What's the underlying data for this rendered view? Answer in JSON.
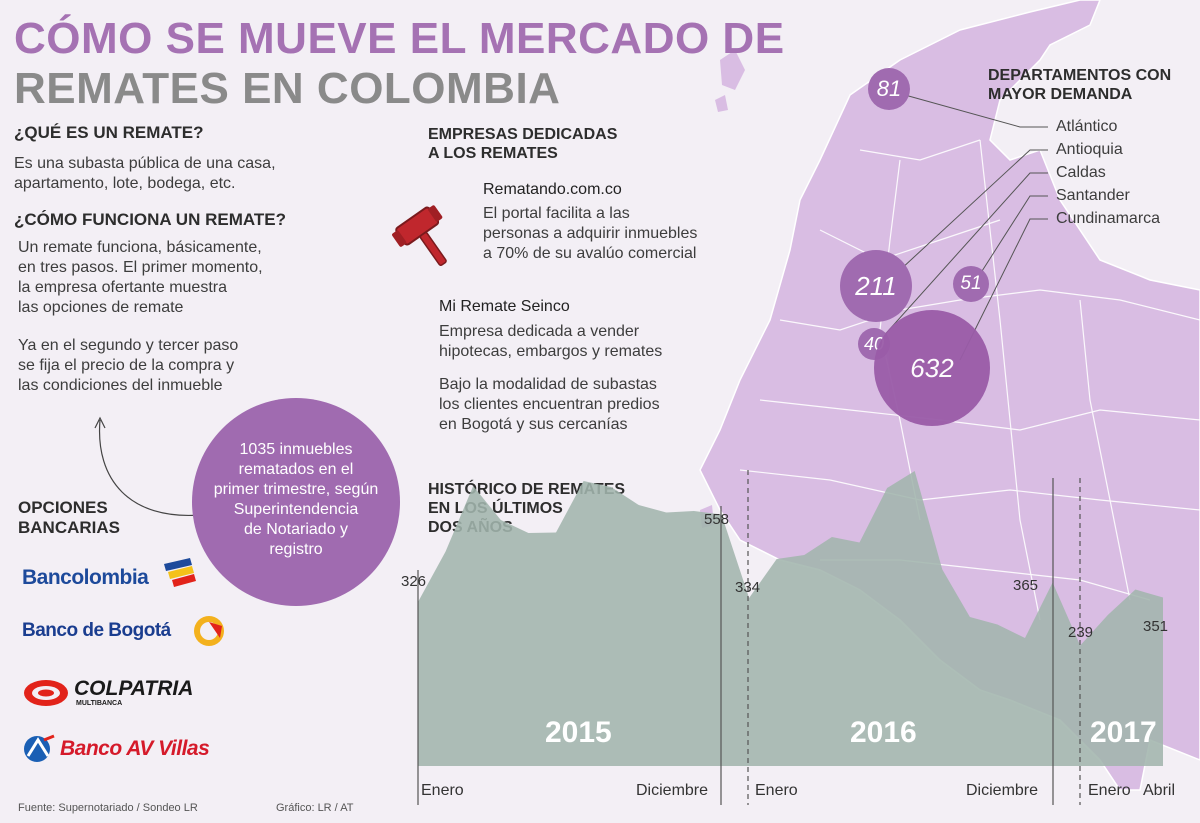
{
  "title": {
    "line1": "CÓMO SE MUEVE EL MERCADO DE",
    "line2": "REMATES EN COLOMBIA"
  },
  "que_es": {
    "heading": "¿QUÉ ES UN REMATE?",
    "lines": [
      "Es una subasta pública de una casa,",
      "apartamento, lote, bodega, etc."
    ]
  },
  "como_funciona": {
    "heading": "¿CÓMO FUNCIONA UN REMATE?",
    "para1": [
      "Un remate funciona, básicamente,",
      "en tres pasos. El primer momento,",
      "la empresa ofertante muestra",
      "las opciones de remate"
    ],
    "para2": [
      "Ya en el segundo y tercer paso",
      "se fija el precio de la compra y",
      "las condiciones del inmueble"
    ]
  },
  "callout": {
    "lines": [
      "1035 inmuebles",
      "rematados en el",
      "primer trimestre, según",
      "Superintendencia",
      "de Notariado y",
      "registro"
    ],
    "color": "#a06bb0"
  },
  "bancos": {
    "heading": [
      "OPCIONES",
      "BANCARIAS"
    ],
    "logos": [
      "Bancolombia",
      "Banco de Bogotá",
      "COLPATRIA",
      "MULTIBANCA",
      "Banco AV Villas"
    ]
  },
  "empresas": {
    "heading": [
      "EMPRESAS DEDICADAS",
      "A LOS REMATES"
    ],
    "e1": {
      "name": "Rematando.com.co",
      "lines": [
        "El portal facilita a las",
        "personas a adquirir inmuebles",
        "a 70% de su avalúo comercial"
      ]
    },
    "e2": {
      "name": "Mi Remate Seinco",
      "lines": [
        "Empresa dedicada a vender",
        "hipotecas, embargos y remates"
      ],
      "lines2": [
        "Bajo la modalidad de subastas",
        "los clientes encuentran predios",
        "en Bogotá y sus cercanías"
      ]
    }
  },
  "departamentos": {
    "heading": [
      "DEPARTAMENTOS CON",
      "MAYOR DEMANDA"
    ],
    "names": [
      "Atlántico",
      "Antioquia",
      "Caldas",
      "Santander",
      "Cundinamarca"
    ],
    "values": [
      "81",
      "211",
      "40",
      "51",
      "632"
    ]
  },
  "chart_heading": [
    "HISTÓRICO DE REMATES",
    "EN LOS ÚLTIMOS",
    "DOS AÑOS"
  ],
  "chart_data": {
    "type": "area",
    "title": "HISTÓRICO DE REMATES EN LOS ÚLTIMOS DOS AÑOS",
    "period_labels": [
      "Enero",
      "Diciembre",
      "Enero",
      "Diciembre",
      "Enero",
      "Abril"
    ],
    "years": [
      "2015",
      "2016",
      "2017"
    ],
    "values": [
      326,
      427,
      558,
      490,
      464,
      465,
      568,
      556,
      520,
      505,
      508,
      501,
      334,
      412,
      420,
      456,
      445,
      554,
      588,
      391,
      296,
      281,
      254,
      365,
      239,
      300,
      351,
      335
    ],
    "labeled_points": [
      {
        "label": "326",
        "value": 326
      },
      {
        "label": "558",
        "value": 558
      },
      {
        "label": "334",
        "value": 334
      },
      {
        "label": "365",
        "value": 365
      },
      {
        "label": "239",
        "value": 239
      },
      {
        "label": "351",
        "value": 351
      }
    ],
    "color": "#a2b5ad"
  },
  "footer": {
    "source": "Fuente: Supernotariado / Sondeo LR",
    "credit": "Gráfico: LR / AT"
  },
  "colors": {
    "purple": "#a572b3",
    "map": "#d9bde3",
    "bubble": "#a06bb0",
    "bubble_big": "#9a5ca8"
  }
}
